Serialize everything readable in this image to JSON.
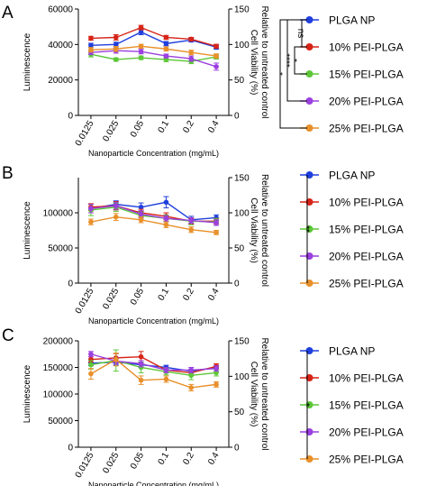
{
  "colors": {
    "PLGA NP": "#1f3fdd",
    "10% PEI-PLGA": "#d62417",
    "15% PEI-PLGA": "#5cc737",
    "20% PEI-PLGA": "#9b3fe0",
    "25% PEI-PLGA": "#e8902a"
  },
  "chart_data": [
    {
      "panel_label": "A",
      "type": "line",
      "categories": [
        "0.0125",
        "0.025",
        "0.05",
        "0.1",
        "0.2",
        "0.4"
      ],
      "xlabel": "Nanoparticle Concentration (mg/mL)",
      "ylabel": "Luminescence",
      "y2label": [
        "Cell Viability (%)",
        "Relative to untreated control"
      ],
      "ylim": [
        0,
        60000
      ],
      "yticks": [
        "0",
        "20000",
        "40000",
        "60000"
      ],
      "yticks_values": [
        0,
        20000,
        40000,
        60000
      ],
      "y2lim": [
        0,
        150
      ],
      "y2ticks": [
        "0",
        "50",
        "100",
        "150"
      ],
      "y2ticks_values": [
        0,
        50,
        100,
        150
      ],
      "series": [
        {
          "name": "PLGA NP",
          "values": [
            39500,
            40000,
            47000,
            40500,
            42500,
            38500
          ],
          "err": [
            1200,
            1300,
            1500,
            1200,
            1100,
            1200
          ]
        },
        {
          "name": "10% PEI-PLGA",
          "values": [
            43500,
            44000,
            49500,
            44000,
            43000,
            39000
          ],
          "err": [
            1100,
            1500,
            1300,
            1100,
            1000,
            1100
          ]
        },
        {
          "name": "15% PEI-PLGA",
          "values": [
            34500,
            31500,
            32500,
            31500,
            30500,
            33000
          ],
          "err": [
            1500,
            900,
            1000,
            1200,
            1300,
            1200
          ]
        },
        {
          "name": "20% PEI-PLGA",
          "values": [
            35500,
            36500,
            36000,
            33500,
            32000,
            27500
          ],
          "err": [
            1200,
            1400,
            1300,
            1100,
            1500,
            2000
          ]
        },
        {
          "name": "25% PEI-PLGA",
          "values": [
            37000,
            37500,
            39000,
            37500,
            35500,
            33500
          ],
          "err": [
            1300,
            1400,
            1100,
            1200,
            1300,
            1200
          ]
        }
      ],
      "significance": [
        {
          "label": "ns",
          "from": 0,
          "to": 1
        },
        {
          "label": "*",
          "from": 1,
          "to": 2
        },
        {
          "label": "****",
          "from": 0,
          "to": 3
        },
        {
          "label": "*",
          "from": 0,
          "to": 4
        }
      ]
    },
    {
      "panel_label": "B",
      "type": "line",
      "categories": [
        "0.0125",
        "0.025",
        "0.05",
        "0.1",
        "0.2",
        "0.4"
      ],
      "xlabel": "Nanoparticle Concentration (mg/mL)",
      "ylabel": "Luminescence",
      "y2label": [
        "Cell Viability (%)",
        "Relative to untreated control"
      ],
      "ylim": [
        0,
        150000
      ],
      "yticks": [
        "0",
        "50000",
        "100000"
      ],
      "yticks_values": [
        0,
        50000,
        100000
      ],
      "y2lim": [
        0,
        150
      ],
      "y2ticks": [
        "0",
        "50",
        "100",
        "150"
      ],
      "y2ticks_values": [
        0,
        50,
        100,
        150
      ],
      "series": [
        {
          "name": "PLGA NP",
          "values": [
            106000,
            112000,
            108000,
            115000,
            90000,
            93000
          ],
          "err": [
            6000,
            5000,
            6000,
            8000,
            5000,
            4000
          ]
        },
        {
          "name": "10% PEI-PLGA",
          "values": [
            108000,
            110000,
            100000,
            95000,
            88000,
            88000
          ],
          "err": [
            5000,
            6000,
            5000,
            5000,
            4000,
            4000
          ]
        },
        {
          "name": "15% PEI-PLGA",
          "values": [
            104000,
            108000,
            96000,
            92000,
            88000,
            87000
          ],
          "err": [
            8000,
            6000,
            5000,
            5000,
            5000,
            5000
          ]
        },
        {
          "name": "20% PEI-PLGA",
          "values": [
            106000,
            110000,
            98000,
            92000,
            89000,
            86000
          ],
          "err": [
            6000,
            5000,
            5000,
            4000,
            4000,
            4000
          ]
        },
        {
          "name": "25% PEI-PLGA",
          "values": [
            87000,
            94000,
            90000,
            83000,
            76000,
            72000
          ],
          "err": [
            4000,
            5000,
            4000,
            4000,
            4000,
            3000
          ]
        }
      ],
      "significance": [
        {
          "label": "**",
          "from": 0,
          "to": 4
        }
      ]
    },
    {
      "panel_label": "C",
      "type": "line",
      "categories": [
        "0.0125",
        "0.025",
        "0.05",
        "0.1",
        "0.2",
        "0.4"
      ],
      "xlabel": "Nanoparticle Concentration (mg/mL)",
      "ylabel": "Luminescence",
      "y2label": [
        "Cell Viability (%)",
        "Relative to untreated control"
      ],
      "ylim": [
        0,
        200000
      ],
      "yticks": [
        "0",
        "50000",
        "100000",
        "150000",
        "200000"
      ],
      "yticks_values": [
        0,
        50000,
        100000,
        150000,
        200000
      ],
      "y2lim": [
        0,
        150
      ],
      "y2ticks": [
        "0",
        "50",
        "100",
        "150"
      ],
      "y2ticks_values": [
        0,
        50,
        100,
        150
      ],
      "series": [
        {
          "name": "PLGA NP",
          "values": [
            158000,
            160000,
            155000,
            150000,
            143000,
            150000
          ],
          "err": [
            5000,
            6000,
            5000,
            4000,
            4000,
            4000
          ]
        },
        {
          "name": "10% PEI-PLGA",
          "values": [
            165000,
            168000,
            170000,
            145000,
            140000,
            152000
          ],
          "err": [
            5000,
            8000,
            10000,
            5000,
            5000,
            5000
          ]
        },
        {
          "name": "15% PEI-PLGA",
          "values": [
            155000,
            163000,
            150000,
            142000,
            135000,
            140000
          ],
          "err": [
            8000,
            20000,
            10000,
            6000,
            8000,
            6000
          ]
        },
        {
          "name": "20% PEI-PLGA",
          "values": [
            175000,
            162000,
            157000,
            145000,
            145000,
            148000
          ],
          "err": [
            5000,
            6000,
            6000,
            5000,
            5000,
            5000
          ]
        },
        {
          "name": "25% PEI-PLGA",
          "values": [
            138000,
            165000,
            126000,
            128000,
            112000,
            118000
          ],
          "err": [
            10000,
            12000,
            8000,
            6000,
            6000,
            5000
          ]
        }
      ],
      "significance": [
        {
          "label": "*",
          "from": 0,
          "to": 4
        }
      ]
    }
  ]
}
